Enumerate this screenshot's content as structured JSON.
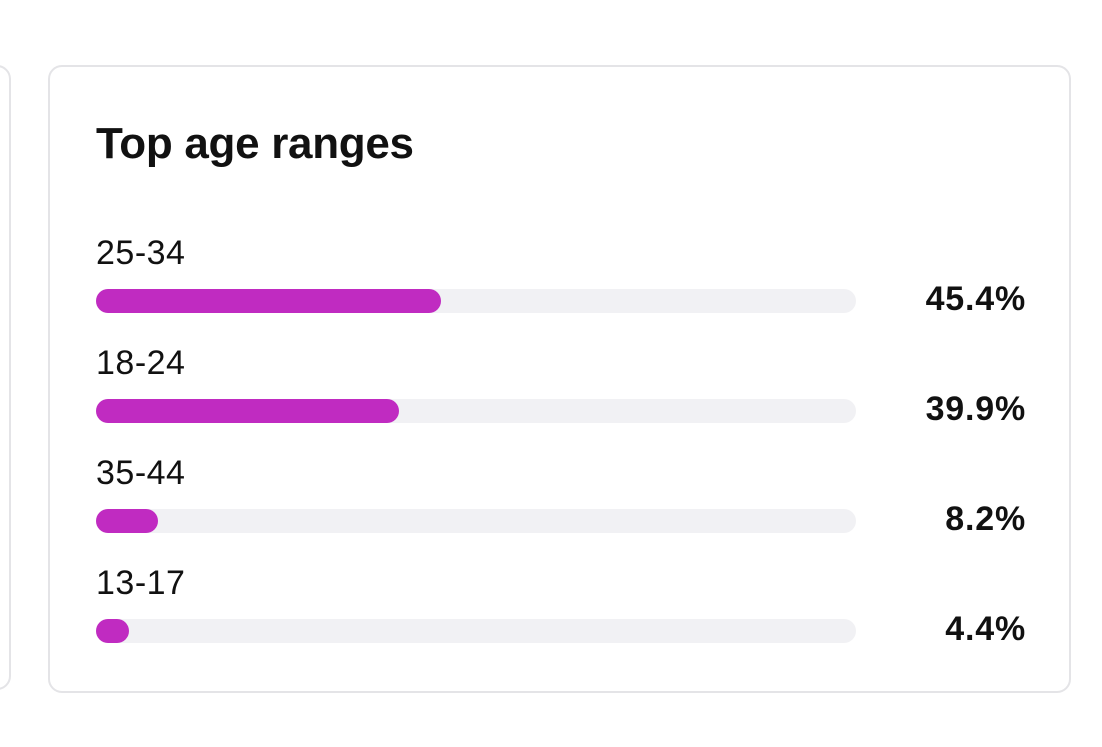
{
  "card": {
    "title": "Top age ranges"
  },
  "colors": {
    "bar_fill": "#c02bc1",
    "bar_track": "#f1f1f4",
    "card_border": "#e4e4e7",
    "text": "#111111"
  },
  "age_ranges": [
    {
      "label": "25-34",
      "value_text": "45.4%",
      "fill_fraction": 0.454
    },
    {
      "label": "18-24",
      "value_text": "39.9%",
      "fill_fraction": 0.399
    },
    {
      "label": "35-44",
      "value_text": "8.2%",
      "fill_fraction": 0.082
    },
    {
      "label": "13-17",
      "value_text": "4.4%",
      "fill_fraction": 0.044
    }
  ]
}
